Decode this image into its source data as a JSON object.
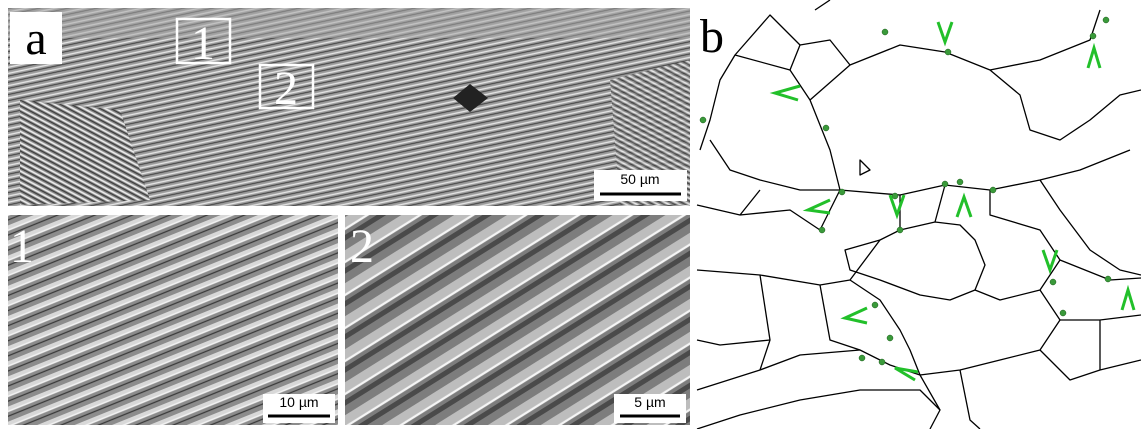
{
  "panels": [
    {
      "label": "a",
      "boxes": [
        "1",
        "2"
      ],
      "scale_bar": "50 µm"
    },
    {
      "label": "1",
      "scale_bar": "10 µm"
    },
    {
      "label": "2",
      "scale_bar": "5 µm"
    },
    {
      "label": "b"
    }
  ]
}
